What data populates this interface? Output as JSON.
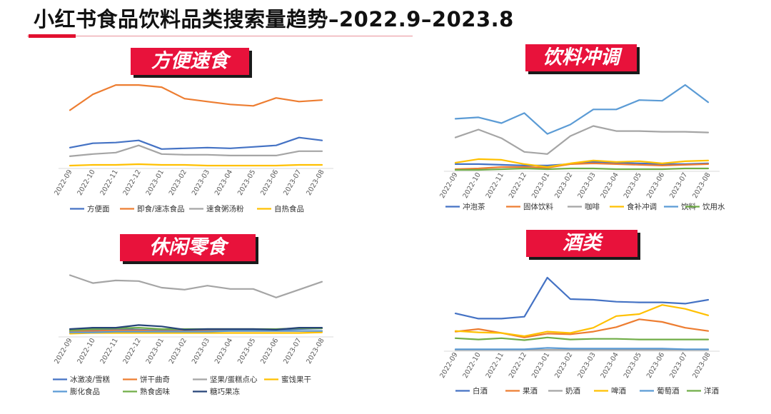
{
  "page_title": "小红书食品饮料品类搜索量趋势–2022.9–2023.8",
  "chart_data": [
    {
      "panel": "tl",
      "title": "方便速食",
      "type": "line",
      "categories": [
        "2022-09",
        "2022-10",
        "2022-11",
        "2022-12",
        "2023-01",
        "2023-02",
        "2023-03",
        "2023-04",
        "2023-05",
        "2023-06",
        "2023-07",
        "2023-08"
      ],
      "ylim": [
        0,
        125
      ],
      "series": [
        {
          "name": "方便面",
          "color": "#4472C4",
          "values": [
            29,
            35,
            36,
            39,
            27,
            28,
            29,
            28,
            30,
            32,
            43,
            39
          ]
        },
        {
          "name": "即食/速冻食品",
          "color": "#ED7D31",
          "values": [
            81,
            103,
            116,
            116,
            113,
            97,
            93,
            89,
            87,
            98,
            93,
            95
          ]
        },
        {
          "name": "速食粥汤粉",
          "color": "#A5A5A5",
          "values": [
            17,
            20,
            22,
            32,
            20,
            19,
            19,
            18,
            18,
            18,
            24,
            24
          ]
        },
        {
          "name": "自热食品",
          "color": "#FFC000",
          "values": [
            4,
            5,
            5,
            6,
            5,
            5,
            4,
            4,
            4,
            4,
            5,
            5
          ]
        }
      ]
    },
    {
      "panel": "tr",
      "title": "饮料冲调",
      "type": "line",
      "categories": [
        "2022-09",
        "2022-10",
        "2022-11",
        "2022-12",
        "2023-01",
        "2023-02",
        "2023-03",
        "2023-04",
        "2023-05",
        "2023-06",
        "2023-07",
        "2023-08"
      ],
      "ylim": [
        0,
        125
      ],
      "series": [
        {
          "name": "冲泡茶",
          "color": "#4472C4",
          "values": [
            10,
            10,
            9,
            8,
            8,
            10,
            13,
            12,
            11,
            10,
            10,
            11
          ]
        },
        {
          "name": "固体饮料",
          "color": "#ED7D31",
          "values": [
            3,
            4,
            6,
            6,
            5,
            10,
            11,
            10,
            9,
            8,
            9,
            10
          ]
        },
        {
          "name": "咖啡",
          "color": "#A5A5A5",
          "values": [
            47,
            58,
            46,
            27,
            24,
            49,
            63,
            56,
            56,
            55,
            55,
            54
          ]
        },
        {
          "name": "食补冲调",
          "color": "#FFC000",
          "values": [
            12,
            17,
            16,
            10,
            6,
            11,
            15,
            13,
            14,
            11,
            14,
            15
          ]
        },
        {
          "name": "饮料",
          "color": "#5B9BD5",
          "values": [
            73,
            75,
            67,
            81,
            52,
            65,
            86,
            86,
            99,
            98,
            120,
            96
          ]
        },
        {
          "name": "饮用水",
          "color": "#70AD47",
          "values": [
            2,
            2,
            3,
            4,
            3,
            4,
            4,
            3,
            3,
            3,
            4,
            4
          ]
        }
      ]
    },
    {
      "panel": "bl",
      "title": "休闲零食",
      "type": "line",
      "categories": [
        "2022-09",
        "2022-10",
        "2022-11",
        "2022-12",
        "2023-01",
        "2023-02",
        "2023-03",
        "2023-04",
        "2023-05",
        "2023-06",
        "2023-07",
        "2023-08"
      ],
      "ylim": [
        0,
        100
      ],
      "series": [
        {
          "name": "冰激凌/雪糕",
          "color": "#4472C4",
          "values": [
            9,
            11,
            12,
            11,
            10,
            10,
            10,
            11,
            11,
            11,
            12,
            13
          ]
        },
        {
          "name": "饼干曲奇",
          "color": "#ED7D31",
          "values": [
            8,
            9,
            10,
            10,
            9,
            9,
            9,
            9,
            9,
            9,
            9,
            9
          ]
        },
        {
          "name": "坚果/蛋糕点心",
          "color": "#A5A5A5",
          "values": [
            94,
            82,
            86,
            85,
            75,
            72,
            78,
            73,
            73,
            60,
            72,
            84
          ]
        },
        {
          "name": "蜜饯果干",
          "color": "#FFC000",
          "values": [
            5,
            6,
            6,
            6,
            6,
            6,
            6,
            6,
            6,
            6,
            6,
            7
          ]
        },
        {
          "name": "膨化食品",
          "color": "#5B9BD5",
          "values": [
            7,
            7,
            8,
            8,
            8,
            8,
            8,
            9,
            9,
            9,
            9,
            9
          ]
        },
        {
          "name": "熟食卤味",
          "color": "#70AD47",
          "values": [
            10,
            12,
            13,
            14,
            12,
            12,
            12,
            12,
            12,
            12,
            13,
            13
          ]
        },
        {
          "name": "糖巧果冻",
          "color": "#264478",
          "values": [
            12,
            14,
            14,
            18,
            16,
            11,
            12,
            12,
            12,
            11,
            14,
            14
          ]
        }
      ]
    },
    {
      "panel": "br",
      "title": "酒类",
      "type": "line",
      "categories": [
        "2022-09",
        "2022-10",
        "2022-11",
        "2022-12",
        "2023-01",
        "2023-02",
        "2023-03",
        "2023-04",
        "2023-05",
        "2023-06",
        "2023-07",
        "2023-08"
      ],
      "ylim": [
        0,
        125
      ],
      "series": [
        {
          "name": "白酒",
          "color": "#4472C4",
          "values": [
            58,
            50,
            50,
            53,
            113,
            80,
            79,
            76,
            75,
            75,
            73,
            79
          ]
        },
        {
          "name": "果酒",
          "color": "#ED7D31",
          "values": [
            30,
            34,
            28,
            21,
            27,
            26,
            30,
            37,
            49,
            45,
            36,
            31
          ]
        },
        {
          "name": "奶酒",
          "color": "#A5A5A5",
          "values": [
            2,
            2,
            2,
            2,
            2,
            2,
            2,
            2,
            2,
            2,
            2,
            2
          ]
        },
        {
          "name": "啤酒",
          "color": "#FFC000",
          "values": [
            31,
            29,
            28,
            23,
            30,
            28,
            36,
            54,
            57,
            71,
            65,
            55
          ]
        },
        {
          "name": "葡萄酒",
          "color": "#5B9BD5",
          "values": [
            3,
            3,
            3,
            3,
            5,
            4,
            4,
            4,
            4,
            4,
            3,
            3
          ]
        },
        {
          "name": "洋酒",
          "color": "#70AD47",
          "values": [
            20,
            18,
            20,
            17,
            21,
            18,
            19,
            19,
            18,
            18,
            18,
            18
          ]
        }
      ]
    }
  ]
}
